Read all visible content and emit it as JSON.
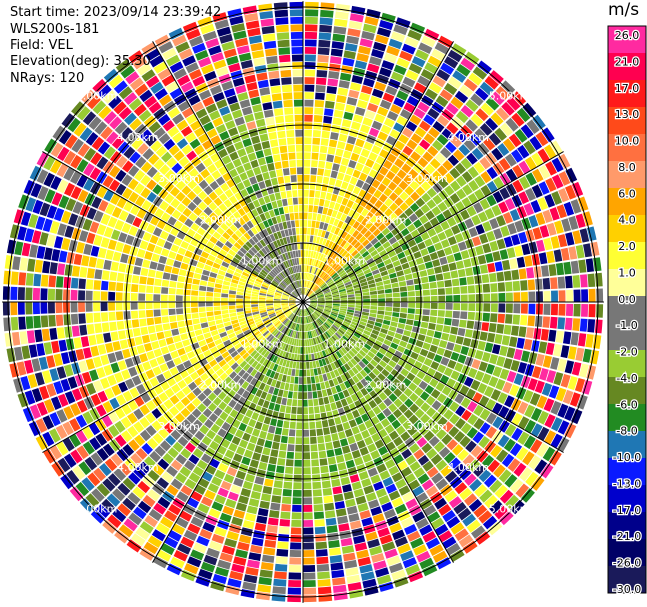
{
  "header": {
    "start_time": "Start time: 2023/09/14 23:39:42",
    "instrument": "WLS200s-181",
    "field": "Field: VEL",
    "elevation": "Elevation(deg): 35.30",
    "nrays": "NRays: 120"
  },
  "colorbar": {
    "unit": "m/s",
    "tick_labels": [
      "26.0",
      "21.0",
      "17.0",
      "13.0",
      "10.0",
      "8.0",
      "6.0",
      "4.0",
      "2.0",
      "1.0",
      "0.0",
      "-1.0",
      "-2.0",
      "-4.0",
      "-6.0",
      "-8.0",
      "-10.0",
      "-13.0",
      "-17.0",
      "-21.0",
      "-26.0",
      "-30.0"
    ],
    "colors": [
      "#ff2aa0",
      "#ff0050",
      "#ff1a1a",
      "#ff4a1a",
      "#ff7040",
      "#ff9a6a",
      "#ffa500",
      "#ffd000",
      "#ffff33",
      "#ffff99",
      "#777777",
      "#777777",
      "#99cc33",
      "#668822",
      "#228b22",
      "#1f77b4",
      "#0a1aff",
      "#0000cc",
      "#00008b",
      "#000066",
      "#1a1a5a"
    ]
  },
  "chart_data": {
    "type": "heatmap",
    "projection": "polar PPI",
    "field": "VEL",
    "units": "m/s",
    "range_rings_km": [
      1.0,
      2.0,
      3.0,
      4.0,
      5.0
    ],
    "ring_labels": [
      "1.00km",
      "2.00km",
      "3.00km",
      "4.00km",
      "5.00km"
    ],
    "nrays": 120,
    "value_range": [
      -30.0,
      26.0
    ],
    "colormap_bounds": [
      -30,
      -26,
      -21,
      -17,
      -13,
      -10,
      -8,
      -6,
      -4,
      -2,
      -1,
      0,
      1,
      2,
      4,
      6,
      8,
      10,
      13,
      17,
      21,
      26
    ],
    "pattern": {
      "inner_negative_sector_deg": [
        220,
        360
      ],
      "inner_positive_sector_deg": [
        60,
        220
      ],
      "inner_negative_range_km": 3.2,
      "outer_noise_from_km": 3.6
    }
  }
}
